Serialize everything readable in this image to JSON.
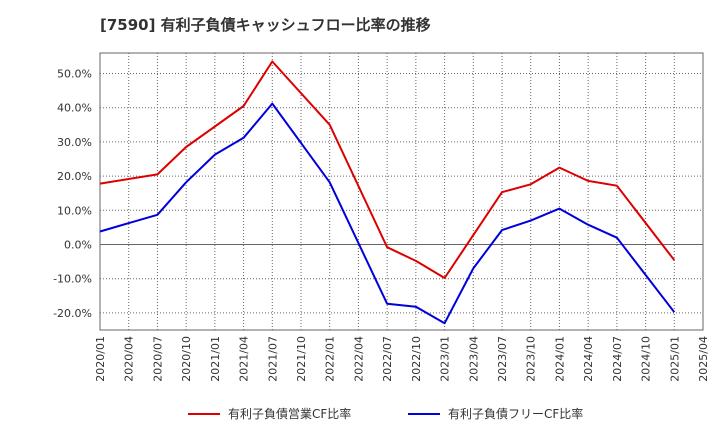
{
  "chart_data": {
    "type": "line",
    "title": "[7590]  有利子負債キャッシュフロー比率の推移",
    "x_ticks": [
      "2020/01",
      "2020/04",
      "2020/07",
      "2020/10",
      "2021/01",
      "2021/04",
      "2021/07",
      "2021/10",
      "2022/01",
      "2022/04",
      "2022/07",
      "2022/10",
      "2023/01",
      "2023/04",
      "2023/07",
      "2023/10",
      "2024/01",
      "2024/04",
      "2024/07",
      "2024/10",
      "2025/01",
      "2025/04"
    ],
    "y_ticks": [
      "-20.0%",
      "-10.0%",
      "0.0%",
      "10.0%",
      "20.0%",
      "30.0%",
      "40.0%",
      "50.0%"
    ],
    "ylim": [
      -25,
      56
    ],
    "grid": true,
    "legend_position": "bottom",
    "series": [
      {
        "name": "有利子負債営業CF比率",
        "color": "#dd0000",
        "points": [
          [
            "2020/01",
            17.8
          ],
          [
            "2020/07",
            20.5
          ],
          [
            "2020/10",
            28.5
          ],
          [
            "2021/01",
            34.5
          ],
          [
            "2021/04",
            40.5
          ],
          [
            "2021/07",
            53.5
          ],
          [
            "2022/01",
            35.0
          ],
          [
            "2022/07",
            -0.8
          ],
          [
            "2022/10",
            -4.8
          ],
          [
            "2023/01",
            -9.8
          ],
          [
            "2023/07",
            15.3
          ],
          [
            "2023/10",
            17.6
          ],
          [
            "2024/01",
            22.5
          ],
          [
            "2024/04",
            18.6
          ],
          [
            "2024/07",
            17.2
          ],
          [
            "2025/01",
            -4.6
          ]
        ]
      },
      {
        "name": "有利子負債フリーCF比率",
        "color": "#0000dd",
        "points": [
          [
            "2020/01",
            3.8
          ],
          [
            "2020/07",
            8.7
          ],
          [
            "2020/10",
            18.2
          ],
          [
            "2021/01",
            26.3
          ],
          [
            "2021/04",
            31.2
          ],
          [
            "2021/07",
            41.2
          ],
          [
            "2022/01",
            18.2
          ],
          [
            "2022/07",
            -17.3
          ],
          [
            "2022/10",
            -18.2
          ],
          [
            "2023/01",
            -23.0
          ],
          [
            "2023/04",
            -7.0
          ],
          [
            "2023/07",
            4.2
          ],
          [
            "2023/10",
            7.0
          ],
          [
            "2024/01",
            10.5
          ],
          [
            "2024/04",
            5.8
          ],
          [
            "2024/07",
            2.0
          ],
          [
            "2025/01",
            -19.8
          ]
        ]
      }
    ]
  }
}
